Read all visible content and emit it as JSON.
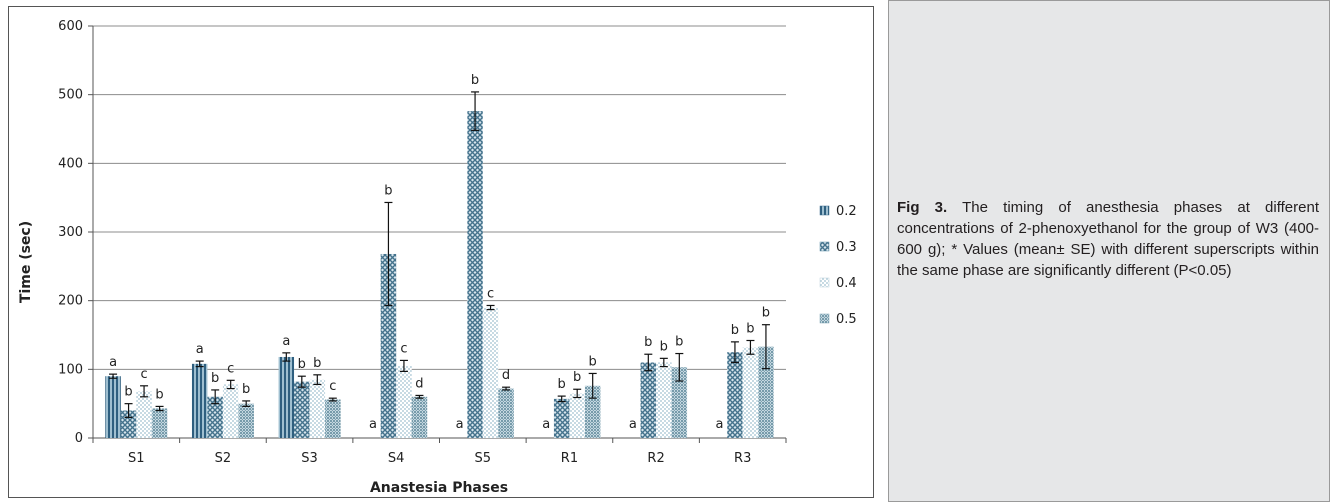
{
  "chart_data": {
    "type": "bar",
    "xlabel": "Anastesia Phases",
    "ylabel": "Time (sec)",
    "ylim": [
      0,
      600
    ],
    "yticks": [
      "0",
      "100",
      "200",
      "300",
      "400",
      "500",
      "600"
    ],
    "grid": true,
    "legend_position": "right",
    "categories": [
      "S1",
      "S2",
      "S3",
      "S4",
      "S5",
      "R1",
      "R2",
      "R3"
    ],
    "series": [
      {
        "name": "0.2",
        "color": "#3f6f8f",
        "pattern": "vertical-stripes",
        "values": [
          90,
          108,
          118,
          0,
          0,
          0,
          0,
          0
        ],
        "errors": [
          3,
          4,
          6,
          0,
          0,
          0,
          0,
          0
        ],
        "letters": [
          "a",
          "a",
          "a",
          "a",
          "a",
          "a",
          "a",
          "a"
        ]
      },
      {
        "name": "0.3",
        "color": "#5f8fa7",
        "pattern": "crosshatch",
        "values": [
          40,
          60,
          82,
          268,
          476,
          57,
          110,
          125
        ],
        "errors": [
          10,
          10,
          8,
          75,
          28,
          4,
          12,
          15
        ],
        "letters": [
          "b",
          "b",
          "b",
          "b",
          "b",
          "b",
          "b",
          "b"
        ]
      },
      {
        "name": "0.4",
        "color": "#b9d0db",
        "pattern": "dots",
        "values": [
          68,
          78,
          85,
          105,
          190,
          65,
          110,
          132
        ],
        "errors": [
          8,
          6,
          7,
          8,
          3,
          6,
          6,
          10
        ],
        "letters": [
          "c",
          "c",
          "b",
          "c",
          "c",
          "b",
          "b",
          "b"
        ]
      },
      {
        "name": "0.5",
        "color": "#7ea5b5",
        "pattern": "dense-dots",
        "values": [
          43,
          50,
          56,
          60,
          72,
          76,
          103,
          133
        ],
        "errors": [
          3,
          4,
          2,
          2,
          2,
          18,
          20,
          32
        ],
        "letters": [
          "b",
          "b",
          "c",
          "d",
          "d",
          "b",
          "b",
          "b"
        ]
      }
    ]
  },
  "caption": {
    "label": "Fig 3.",
    "text": "The timing of anesthesia phases at different concentrations of 2-phenoxyethanol for the group of W3 (400-600 g); * Values (mean± SE) with different superscripts within the same phase are significantly different (P<0.05)"
  }
}
